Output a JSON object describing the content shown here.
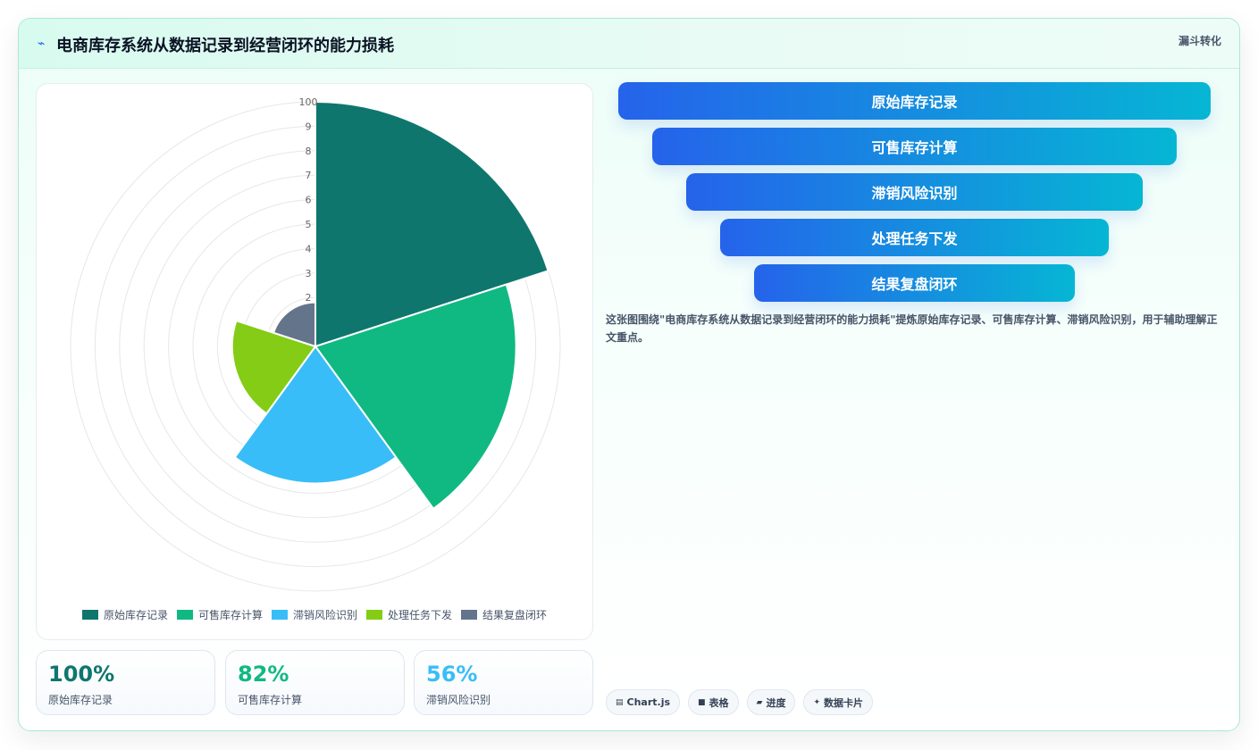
{
  "header": {
    "icon": "lightning-icon",
    "title": "电商库存系统从数据记录到经营闭环的能力损耗",
    "tag": "漏斗转化"
  },
  "chart_data": {
    "type": "polarArea",
    "categories": [
      "原始库存记录",
      "可售库存计算",
      "滞销风险识别",
      "处理任务下发",
      "结果复盘闭环"
    ],
    "values": [
      100,
      82,
      56,
      34,
      18
    ],
    "colors": [
      "#0f766e",
      "#10b981",
      "#38bdf8",
      "#84cc16",
      "#64748b"
    ],
    "r_range": [
      0,
      100
    ],
    "r_ticks": [
      "100",
      "9",
      "8",
      "7",
      "6",
      "5",
      "4",
      "3",
      "2"
    ],
    "legend": "bottom",
    "grid": true
  },
  "kpis": [
    {
      "value": "100%",
      "label": "原始库存记录",
      "color": "#0f766e"
    },
    {
      "value": "82%",
      "label": "可售库存计算",
      "color": "#10b981"
    },
    {
      "value": "56%",
      "label": "滞销风险识别",
      "color": "#38bdf8"
    }
  ],
  "funnel": {
    "steps": [
      "原始库存记录",
      "可售库存计算",
      "滞销风险识别",
      "处理任务下发",
      "结果复盘闭环"
    ]
  },
  "description": "这张图围绕\"电商库存系统从数据记录到经营闭环的能力损耗\"提炼原始库存记录、可售库存计算、滞销风险识别，用于辅助理解正文重点。",
  "chips": [
    {
      "icon": "chart-icon",
      "glyph": "▤",
      "label": "Chart.js"
    },
    {
      "icon": "table-icon",
      "glyph": "■",
      "label": "表格"
    },
    {
      "icon": "progress-icon",
      "glyph": "▰",
      "label": "进度"
    },
    {
      "icon": "sparkle-icon",
      "glyph": "✦",
      "label": "数据卡片"
    }
  ]
}
